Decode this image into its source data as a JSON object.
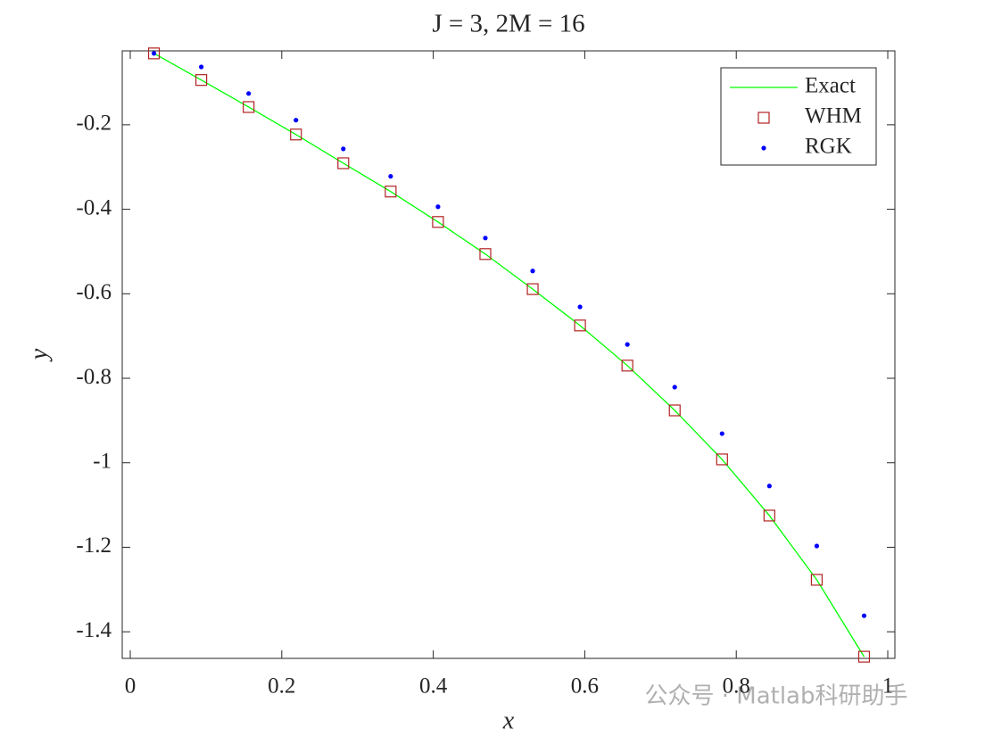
{
  "chart_data": {
    "type": "line",
    "title": "J = 3, 2M = 16",
    "xlabel": "x",
    "ylabel": "y",
    "x": [
      0.03125,
      0.09375,
      0.15625,
      0.21875,
      0.28125,
      0.34375,
      0.40625,
      0.46875,
      0.53125,
      0.59375,
      0.65625,
      0.71875,
      0.78125,
      0.84375,
      0.90625,
      0.96875
    ],
    "series": [
      {
        "name": "Exact",
        "color": "#00ff00",
        "style": "line",
        "values": [
          -0.031,
          -0.094,
          -0.158,
          -0.223,
          -0.291,
          -0.358,
          -0.43,
          -0.506,
          -0.589,
          -0.675,
          -0.77,
          -0.876,
          -0.992,
          -1.125,
          -1.277,
          -1.459
        ]
      },
      {
        "name": "WHM",
        "color": "#b22222",
        "style": "square",
        "values": [
          -0.031,
          -0.094,
          -0.158,
          -0.223,
          -0.291,
          -0.358,
          -0.43,
          -0.506,
          -0.589,
          -0.675,
          -0.77,
          -0.876,
          -0.992,
          -1.125,
          -1.277,
          -1.459
        ]
      },
      {
        "name": "RGK",
        "color": "#0000ff",
        "style": "dot",
        "values": [
          -0.031,
          -0.063,
          -0.126,
          -0.189,
          -0.257,
          -0.322,
          -0.394,
          -0.468,
          -0.546,
          -0.631,
          -0.72,
          -0.821,
          -0.931,
          -1.055,
          -1.197,
          -1.362
        ]
      }
    ],
    "xlim": [
      -0.0106,
      1.0094
    ],
    "xticks": [
      0,
      0.2,
      0.4,
      0.6,
      0.8,
      1
    ],
    "ylim": [
      -1.463,
      -0.025
    ],
    "yticks": [
      -1.4,
      -1.2,
      -1,
      -0.8,
      -0.6,
      -0.4,
      -0.2
    ],
    "legend": "top-right",
    "watermark": "公众号 · Matlab科研助手"
  }
}
